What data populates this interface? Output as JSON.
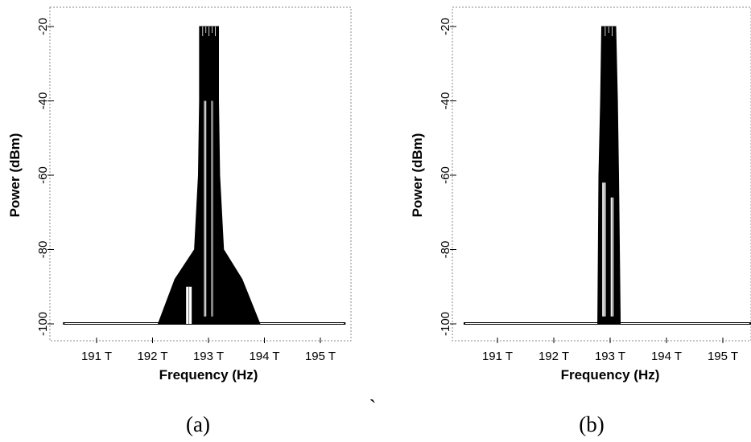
{
  "chart_data": [
    {
      "type": "area",
      "panel": "a",
      "caption": "(a)",
      "xlabel": "Frequency (Hz)",
      "ylabel": "Power (dBm)",
      "xlim": [
        190.3,
        195.6
      ],
      "ylim": [
        -101,
        -20
      ],
      "x_ticks": [
        {
          "value": 191,
          "label": "191 T"
        },
        {
          "value": 192,
          "label": "192 T"
        },
        {
          "value": 193,
          "label": "193 T"
        },
        {
          "value": 194,
          "label": "194 T"
        },
        {
          "value": 195,
          "label": "195 T"
        }
      ],
      "y_ticks": [
        {
          "value": -20,
          "label": "-20"
        },
        {
          "value": -40,
          "label": "-40"
        },
        {
          "value": -60,
          "label": "-60"
        },
        {
          "value": -80,
          "label": "-80"
        },
        {
          "value": -100,
          "label": "-100"
        }
      ],
      "noise_floor_dbm": -100,
      "noise_floor_range_thz": [
        190.4,
        195.45
      ],
      "envelope": [
        {
          "x": 192.1,
          "y": -100
        },
        {
          "x": 192.4,
          "y": -88
        },
        {
          "x": 192.75,
          "y": -80
        },
        {
          "x": 192.82,
          "y": -60
        },
        {
          "x": 192.84,
          "y": -40
        },
        {
          "x": 192.84,
          "y": -20
        },
        {
          "x": 193.18,
          "y": -20
        },
        {
          "x": 193.18,
          "y": -40
        },
        {
          "x": 193.2,
          "y": -60
        },
        {
          "x": 193.27,
          "y": -80
        },
        {
          "x": 193.6,
          "y": -88
        },
        {
          "x": 193.92,
          "y": -100
        }
      ],
      "white_gaps": [
        {
          "x": [
            192.6,
            192.7
          ],
          "y": [
            -100,
            -90
          ]
        },
        {
          "x": [
            192.92,
            192.96
          ],
          "y": [
            -98,
            -40
          ]
        },
        {
          "x": [
            193.05,
            193.08
          ],
          "y": [
            -98,
            -40
          ]
        }
      ]
    },
    {
      "type": "area",
      "panel": "b",
      "caption": "(b)",
      "xlabel": "Frequency (Hz)",
      "ylabel": "Power (dBm)",
      "xlim": [
        190.3,
        195.6
      ],
      "ylim": [
        -101,
        -20
      ],
      "x_ticks": [
        {
          "value": 191,
          "label": "191 T"
        },
        {
          "value": 192,
          "label": "192 T"
        },
        {
          "value": 193,
          "label": "193 T"
        },
        {
          "value": 194,
          "label": "194 T"
        },
        {
          "value": 195,
          "label": "195 T"
        }
      ],
      "y_ticks": [
        {
          "value": -20,
          "label": "-20"
        },
        {
          "value": -40,
          "label": "-40"
        },
        {
          "value": -60,
          "label": "-60"
        },
        {
          "value": -80,
          "label": "-80"
        },
        {
          "value": -100,
          "label": "-100"
        }
      ],
      "noise_floor_dbm": -100,
      "noise_floor_range_thz": [
        190.4,
        195.5
      ],
      "envelope": [
        {
          "x": 192.78,
          "y": -100
        },
        {
          "x": 192.8,
          "y": -60
        },
        {
          "x": 192.83,
          "y": -40
        },
        {
          "x": 192.85,
          "y": -20
        },
        {
          "x": 193.1,
          "y": -20
        },
        {
          "x": 193.13,
          "y": -40
        },
        {
          "x": 193.15,
          "y": -60
        },
        {
          "x": 193.18,
          "y": -100
        }
      ],
      "white_gaps": [
        {
          "x": [
            192.86,
            192.92
          ],
          "y": [
            -98,
            -62
          ]
        },
        {
          "x": [
            193.01,
            193.06
          ],
          "y": [
            -98,
            -66
          ]
        }
      ]
    }
  ],
  "separator_mark": "`"
}
